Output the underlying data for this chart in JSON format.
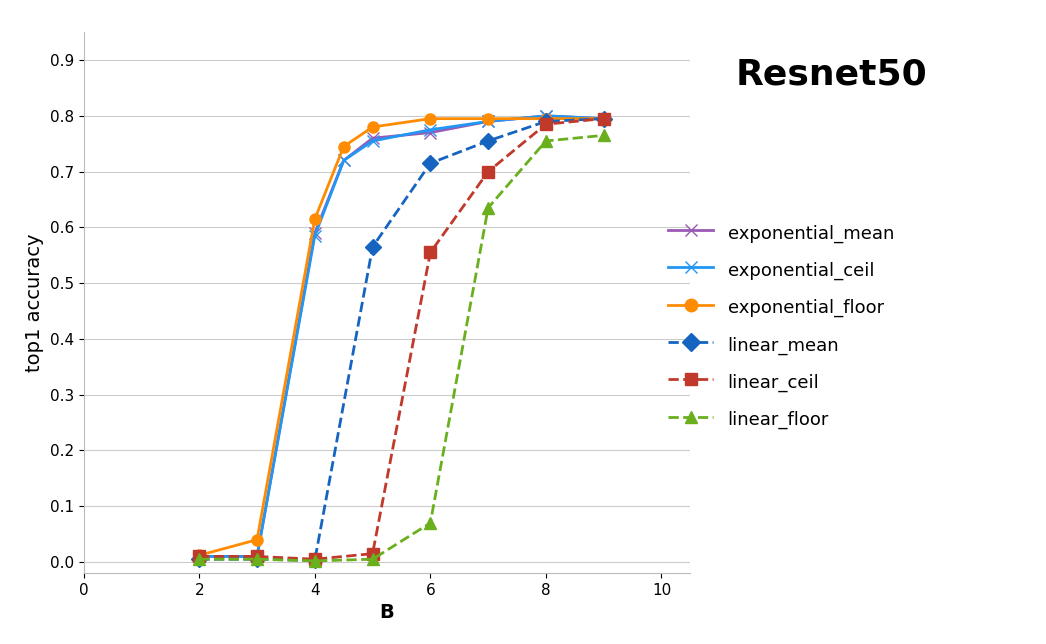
{
  "title": "Resnet50",
  "xlabel": "B",
  "ylabel": "top1 accuracy",
  "xlim": [
    0,
    10.5
  ],
  "ylim": [
    -0.02,
    0.95
  ],
  "xticks": [
    0,
    2,
    4,
    6,
    8,
    10
  ],
  "yticks": [
    0.0,
    0.1,
    0.2,
    0.3,
    0.4,
    0.5,
    0.6,
    0.7,
    0.8,
    0.9
  ],
  "series": {
    "exponential_mean": {
      "x": [
        2,
        3,
        4,
        4.5,
        5,
        6,
        7,
        8,
        9
      ],
      "y": [
        0.01,
        0.01,
        0.59,
        0.72,
        0.76,
        0.77,
        0.79,
        0.8,
        0.795
      ],
      "color": "#9B59B6",
      "linestyle": "solid",
      "marker": "x",
      "markersize": 8,
      "linewidth": 2.0,
      "dashed": false
    },
    "exponential_ceil": {
      "x": [
        2,
        3,
        4,
        4.5,
        5,
        6,
        7,
        8,
        9
      ],
      "y": [
        0.01,
        0.01,
        0.585,
        0.72,
        0.755,
        0.775,
        0.79,
        0.8,
        0.795
      ],
      "color": "#2196F3",
      "linestyle": "solid",
      "marker": "x",
      "markersize": 8,
      "linewidth": 2.0,
      "dashed": false
    },
    "exponential_floor": {
      "x": [
        2,
        3,
        4,
        4.5,
        5,
        6,
        7,
        8,
        9
      ],
      "y": [
        0.012,
        0.04,
        0.615,
        0.745,
        0.78,
        0.795,
        0.795,
        0.795,
        0.795
      ],
      "color": "#FF8C00",
      "linestyle": "solid",
      "marker": "o",
      "markersize": 8,
      "linewidth": 2.0,
      "dashed": false
    },
    "linear_mean": {
      "x": [
        2,
        3,
        4,
        5,
        6,
        7,
        8,
        9
      ],
      "y": [
        0.005,
        0.005,
        0.003,
        0.565,
        0.715,
        0.755,
        0.79,
        0.795
      ],
      "color": "#1565C0",
      "linestyle": "dashed",
      "marker": "D",
      "markersize": 8,
      "linewidth": 2.0,
      "dashed": true
    },
    "linear_ceil": {
      "x": [
        2,
        3,
        4,
        5,
        6,
        7,
        8,
        9
      ],
      "y": [
        0.01,
        0.01,
        0.005,
        0.015,
        0.555,
        0.7,
        0.785,
        0.795
      ],
      "color": "#C0392B",
      "linestyle": "dashed",
      "marker": "s",
      "markersize": 8,
      "linewidth": 2.0,
      "dashed": true
    },
    "linear_floor": {
      "x": [
        2,
        3,
        4,
        5,
        6,
        7,
        8,
        9
      ],
      "y": [
        0.005,
        0.005,
        0.002,
        0.005,
        0.07,
        0.635,
        0.755,
        0.765
      ],
      "color": "#6AAF1E",
      "linestyle": "dashed",
      "marker": "^",
      "markersize": 8,
      "linewidth": 2.0,
      "dashed": true
    }
  },
  "legend_order": [
    "exponential_mean",
    "exponential_ceil",
    "exponential_floor",
    "linear_mean",
    "linear_ceil",
    "linear_floor"
  ],
  "background_color": "#FFFFFF",
  "grid_color": "#CCCCCC",
  "title_fontsize": 26,
  "legend_fontsize": 13,
  "axis_label_fontsize": 14,
  "tick_fontsize": 11
}
